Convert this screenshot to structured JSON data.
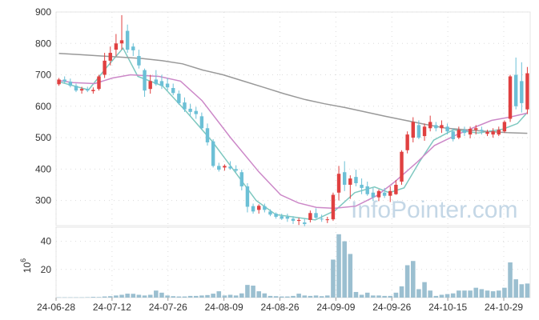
{
  "chart_data": [
    {
      "type": "candlestick",
      "x_labels": [
        "24-06-28",
        "24-07-12",
        "24-07-26",
        "24-08-09",
        "24-08-26",
        "24-09-09",
        "24-09-26",
        "24-10-15",
        "24-10-29"
      ],
      "ylim": [
        220,
        900
      ],
      "y_ticks": [
        300,
        400,
        500,
        600,
        700,
        800,
        900
      ],
      "grid": true,
      "colors": {
        "up": "#e04040",
        "down": "#6cc0d6",
        "ma_short": "#7ec8c0",
        "ma_mid": "#cc88c8",
        "ma_long": "#999999"
      },
      "candles": [
        [
          670,
          690,
          665,
          685
        ],
        [
          685,
          695,
          672,
          678
        ],
        [
          678,
          688,
          660,
          665
        ],
        [
          665,
          672,
          645,
          650
        ],
        [
          650,
          662,
          640,
          655
        ],
        [
          655,
          662,
          645,
          650
        ],
        [
          648,
          660,
          640,
          652
        ],
        [
          655,
          700,
          650,
          695
        ],
        [
          700,
          770,
          690,
          745
        ],
        [
          745,
          790,
          730,
          770
        ],
        [
          780,
          830,
          760,
          800
        ],
        [
          800,
          890,
          780,
          810
        ],
        [
          840,
          860,
          770,
          780
        ],
        [
          790,
          800,
          760,
          778
        ],
        [
          760,
          780,
          720,
          730
        ],
        [
          715,
          720,
          630,
          650
        ],
        [
          655,
          700,
          640,
          680
        ],
        [
          685,
          715,
          665,
          670
        ],
        [
          680,
          700,
          655,
          665
        ],
        [
          672,
          690,
          650,
          660
        ],
        [
          658,
          672,
          635,
          642
        ],
        [
          640,
          650,
          605,
          610
        ],
        [
          612,
          628,
          582,
          590
        ],
        [
          592,
          608,
          570,
          582
        ],
        [
          585,
          598,
          560,
          575
        ],
        [
          568,
          580,
          525,
          530
        ],
        [
          530,
          545,
          475,
          485
        ],
        [
          488,
          495,
          405,
          410
        ],
        [
          410,
          420,
          392,
          398
        ],
        [
          405,
          415,
          395,
          410
        ],
        [
          408,
          425,
          398,
          402
        ],
        [
          400,
          412,
          390,
          395
        ],
        [
          390,
          398,
          332,
          345
        ],
        [
          345,
          355,
          262,
          280
        ],
        [
          282,
          290,
          258,
          265
        ],
        [
          270,
          288,
          258,
          283
        ],
        [
          282,
          290,
          262,
          270
        ],
        [
          265,
          272,
          250,
          255
        ],
        [
          258,
          262,
          242,
          248
        ],
        [
          250,
          258,
          238,
          242
        ],
        [
          248,
          258,
          232,
          242
        ],
        [
          242,
          250,
          225,
          235
        ],
        [
          235,
          245,
          222,
          238
        ],
        [
          230,
          242,
          218,
          225
        ],
        [
          238,
          268,
          230,
          260
        ],
        [
          260,
          275,
          242,
          245
        ],
        [
          242,
          255,
          232,
          240
        ],
        [
          238,
          248,
          228,
          240
        ],
        [
          240,
          325,
          235,
          318
        ],
        [
          325,
          410,
          300,
          385
        ],
        [
          390,
          425,
          330,
          350
        ],
        [
          350,
          380,
          305,
          370
        ],
        [
          375,
          398,
          345,
          355
        ],
        [
          350,
          370,
          320,
          340
        ],
        [
          345,
          360,
          315,
          320
        ],
        [
          325,
          340,
          298,
          310
        ],
        [
          310,
          335,
          298,
          330
        ],
        [
          325,
          340,
          308,
          315
        ],
        [
          315,
          345,
          295,
          330
        ],
        [
          320,
          365,
          318,
          350
        ],
        [
          360,
          460,
          350,
          455
        ],
        [
          460,
          520,
          450,
          510
        ],
        [
          500,
          565,
          485,
          550
        ],
        [
          540,
          555,
          495,
          500
        ],
        [
          505,
          545,
          490,
          535
        ],
        [
          530,
          570,
          520,
          550
        ],
        [
          540,
          550,
          520,
          530
        ],
        [
          530,
          555,
          515,
          540
        ],
        [
          535,
          545,
          510,
          520
        ],
        [
          520,
          530,
          488,
          495
        ],
        [
          500,
          535,
          495,
          525
        ],
        [
          525,
          535,
          505,
          515
        ],
        [
          510,
          535,
          498,
          528
        ],
        [
          525,
          540,
          510,
          530
        ],
        [
          525,
          535,
          510,
          520
        ],
        [
          512,
          525,
          505,
          518
        ],
        [
          510,
          530,
          500,
          520
        ],
        [
          510,
          535,
          505,
          525
        ],
        [
          520,
          555,
          515,
          550
        ],
        [
          560,
          700,
          550,
          695
        ],
        [
          700,
          755,
          590,
          600
        ],
        [
          680,
          740,
          580,
          610
        ],
        [
          590,
          725,
          575,
          705
        ]
      ],
      "moving_averages": {
        "short": [
          [
            0,
            678
          ],
          [
            6,
            652
          ],
          [
            10,
            730
          ],
          [
            13,
            785
          ],
          [
            16,
            695
          ],
          [
            21,
            665
          ],
          [
            26,
            580
          ],
          [
            31,
            490
          ],
          [
            36,
            385
          ],
          [
            40,
            300
          ],
          [
            44,
            255
          ],
          [
            52,
            238
          ],
          [
            56,
            268
          ],
          [
            60,
            325
          ],
          [
            64,
            343
          ],
          [
            67,
            325
          ],
          [
            70,
            340
          ],
          [
            73,
            420
          ],
          [
            76,
            492
          ],
          [
            80,
            525
          ],
          [
            85,
            515
          ],
          [
            90,
            527
          ],
          [
            93,
            545
          ],
          [
            95,
            580
          ]
        ],
        "mid": [
          [
            0,
            682
          ],
          [
            4,
            675
          ],
          [
            10,
            672
          ],
          [
            15,
            690
          ],
          [
            20,
            700
          ],
          [
            28,
            695
          ],
          [
            34,
            680
          ],
          [
            40,
            618
          ],
          [
            48,
            500
          ],
          [
            56,
            390
          ],
          [
            62,
            318
          ],
          [
            67,
            292
          ],
          [
            72,
            278
          ],
          [
            77,
            275
          ],
          [
            83,
            282
          ],
          [
            89,
            316
          ],
          [
            94,
            360
          ],
          [
            100,
            420
          ],
          [
            105,
            475
          ],
          [
            111,
            508
          ],
          [
            116,
            532
          ],
          [
            121,
            555
          ],
          [
            126,
            565
          ],
          [
            131,
            578
          ]
        ],
        "long": [
          [
            0,
            768
          ],
          [
            11,
            764
          ],
          [
            21,
            760
          ],
          [
            31,
            756
          ],
          [
            41,
            752
          ],
          [
            51,
            745
          ],
          [
            61,
            735
          ],
          [
            71,
            715
          ],
          [
            81,
            700
          ],
          [
            91,
            680
          ],
          [
            101,
            660
          ],
          [
            111,
            640
          ],
          [
            121,
            622
          ],
          [
            131,
            608
          ],
          [
            141,
            596
          ],
          [
            151,
            582
          ],
          [
            161,
            568
          ],
          [
            171,
            555
          ],
          [
            181,
            542
          ],
          [
            191,
            530
          ],
          [
            201,
            525
          ],
          [
            211,
            520
          ],
          [
            221,
            516
          ],
          [
            231,
            514
          ]
        ]
      }
    },
    {
      "type": "bar",
      "ylabel": "10",
      "ylabel_exponent": "6",
      "ylim": [
        0,
        50
      ],
      "y_ticks": [
        20,
        40
      ],
      "color": "#9bbfd0",
      "values": [
        0.2,
        0.2,
        0.2,
        0.2,
        0.2,
        0.3,
        0.5,
        0.4,
        0.8,
        1.0,
        1.5,
        2.0,
        2.8,
        2.7,
        2.0,
        1.5,
        2.0,
        5.0,
        3.5,
        1.5,
        1.0,
        0.8,
        0.8,
        1.2,
        1.2,
        1.5,
        1.8,
        2.8,
        4.5,
        1.5,
        2.0,
        1.5,
        3.0,
        9.0,
        8.5,
        4.5,
        3.0,
        1.2,
        1.0,
        0.8,
        0.8,
        1.2,
        2.8,
        1.5,
        1.2,
        1.5,
        1.0,
        1.5,
        27.0,
        45.0,
        40.0,
        31.0,
        4.0,
        2.0,
        3.5,
        1.5,
        1.5,
        1.2,
        1.2,
        3.5,
        8.0,
        23.0,
        26.0,
        6.0,
        11.0,
        5.0,
        1.2,
        2.0,
        2.5,
        3.0,
        5.0,
        5.0,
        5.0,
        7.0,
        6.0,
        5.0,
        4.5,
        5.0,
        7.0,
        25.0,
        13.0,
        9.5,
        10.0
      ]
    }
  ],
  "watermark": "InfoPointer.com"
}
